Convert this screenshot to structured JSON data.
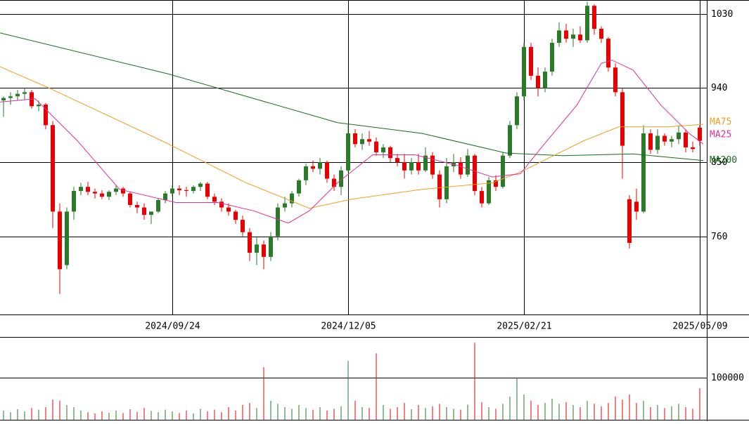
{
  "chart_data": {
    "type": "candlestick",
    "up_color": "#2a7a2a",
    "down_color": "#e80000",
    "xlim": [
      -0.5,
      100
    ],
    "xticks": [
      {
        "value": 24,
        "label": "2024/09/24"
      },
      {
        "value": 49,
        "label": "2024/12/05"
      },
      {
        "value": 74,
        "label": "2025/02/21"
      },
      {
        "value": 99,
        "label": "2025/05/09"
      }
    ],
    "ylim": [
      665,
      1047
    ],
    "yticks": [
      1030,
      940,
      850,
      760
    ],
    "ohlc": [
      [
        925,
        930,
        905,
        928
      ],
      [
        928,
        935,
        920,
        930
      ],
      [
        930,
        938,
        925,
        933
      ],
      [
        933,
        940,
        926,
        935
      ],
      [
        935,
        938,
        915,
        918
      ],
      [
        918,
        925,
        912,
        920
      ],
      [
        920,
        922,
        890,
        895
      ],
      [
        895,
        900,
        770,
        790
      ],
      [
        790,
        800,
        690,
        720
      ],
      [
        725,
        795,
        720,
        790
      ],
      [
        790,
        820,
        780,
        815
      ],
      [
        815,
        825,
        810,
        820
      ],
      [
        820,
        826,
        810,
        814
      ],
      [
        814,
        818,
        806,
        812
      ],
      [
        812,
        816,
        805,
        808
      ],
      [
        808,
        816,
        804,
        814
      ],
      [
        814,
        822,
        810,
        818
      ],
      [
        818,
        820,
        808,
        812
      ],
      [
        812,
        814,
        795,
        798
      ],
      [
        798,
        802,
        788,
        795
      ],
      [
        795,
        800,
        780,
        786
      ],
      [
        786,
        790,
        775,
        790
      ],
      [
        790,
        806,
        788,
        804
      ],
      [
        804,
        815,
        800,
        812
      ],
      [
        812,
        822,
        808,
        818
      ],
      [
        818,
        822,
        810,
        816
      ],
      [
        816,
        820,
        808,
        815
      ],
      [
        815,
        822,
        812,
        820
      ],
      [
        820,
        826,
        815,
        824
      ],
      [
        824,
        826,
        805,
        808
      ],
      [
        808,
        812,
        798,
        802
      ],
      [
        802,
        806,
        790,
        795
      ],
      [
        795,
        800,
        785,
        790
      ],
      [
        790,
        792,
        775,
        780
      ],
      [
        780,
        785,
        760,
        765
      ],
      [
        765,
        770,
        730,
        740
      ],
      [
        740,
        760,
        725,
        750
      ],
      [
        750,
        755,
        720,
        735
      ],
      [
        735,
        765,
        730,
        760
      ],
      [
        760,
        800,
        755,
        795
      ],
      [
        795,
        808,
        790,
        800
      ],
      [
        800,
        815,
        795,
        812
      ],
      [
        812,
        830,
        808,
        828
      ],
      [
        828,
        848,
        822,
        845
      ],
      [
        845,
        852,
        838,
        842
      ],
      [
        842,
        855,
        835,
        850
      ],
      [
        850,
        852,
        825,
        830
      ],
      [
        830,
        835,
        815,
        820
      ],
      [
        820,
        845,
        810,
        840
      ],
      [
        840,
        895,
        838,
        885
      ],
      [
        885,
        890,
        868,
        872
      ],
      [
        872,
        885,
        865,
        878
      ],
      [
        878,
        888,
        870,
        875
      ],
      [
        875,
        880,
        858,
        862
      ],
      [
        862,
        872,
        855,
        868
      ],
      [
        868,
        870,
        850,
        855
      ],
      [
        855,
        860,
        845,
        850
      ],
      [
        850,
        860,
        830,
        840
      ],
      [
        840,
        855,
        835,
        850
      ],
      [
        850,
        860,
        835,
        840
      ],
      [
        840,
        868,
        838,
        858
      ],
      [
        858,
        862,
        830,
        835
      ],
      [
        835,
        840,
        795,
        805
      ],
      [
        805,
        855,
        800,
        845
      ],
      [
        845,
        860,
        838,
        850
      ],
      [
        850,
        856,
        830,
        835
      ],
      [
        835,
        866,
        832,
        858
      ],
      [
        858,
        860,
        810,
        815
      ],
      [
        815,
        820,
        795,
        800
      ],
      [
        800,
        832,
        798,
        828
      ],
      [
        828,
        834,
        815,
        820
      ],
      [
        820,
        862,
        818,
        858
      ],
      [
        858,
        900,
        855,
        895
      ],
      [
        895,
        935,
        890,
        930
      ],
      [
        930,
        995,
        925,
        990
      ],
      [
        990,
        995,
        950,
        955
      ],
      [
        955,
        965,
        930,
        940
      ],
      [
        940,
        965,
        935,
        960
      ],
      [
        960,
        1000,
        955,
        995
      ],
      [
        995,
        1020,
        990,
        1010
      ],
      [
        1010,
        1018,
        995,
        1000
      ],
      [
        1000,
        1012,
        990,
        1005
      ],
      [
        1005,
        1015,
        995,
        998
      ],
      [
        998,
        1045,
        995,
        1040
      ],
      [
        1040,
        1042,
        1005,
        1012
      ],
      [
        1012,
        1015,
        995,
        1000
      ],
      [
        1000,
        1002,
        960,
        965
      ],
      [
        965,
        970,
        930,
        935
      ],
      [
        935,
        940,
        830,
        870
      ],
      [
        805,
        810,
        745,
        752
      ],
      [
        802,
        818,
        780,
        790
      ],
      [
        790,
        895,
        788,
        885
      ],
      [
        885,
        890,
        860,
        865
      ],
      [
        865,
        890,
        860,
        882
      ],
      [
        882,
        885,
        870,
        875
      ],
      [
        875,
        882,
        868,
        878
      ],
      [
        878,
        895,
        872,
        886
      ],
      [
        886,
        890,
        862,
        868
      ],
      [
        868,
        875,
        862,
        866
      ],
      [
        892,
        895,
        870,
        876
      ]
    ],
    "volume": [
      22000,
      18000,
      25000,
      20000,
      28000,
      24000,
      30000,
      48000,
      45000,
      35000,
      30000,
      22000,
      18000,
      15000,
      20000,
      17000,
      22000,
      16000,
      25000,
      19000,
      28000,
      21000,
      18000,
      24000,
      20000,
      16000,
      22000,
      15000,
      26000,
      20000,
      24000,
      18000,
      30000,
      22000,
      35000,
      40000,
      28000,
      125000,
      45000,
      38000,
      30000,
      26000,
      35000,
      28000,
      24000,
      30000,
      22000,
      26000,
      32000,
      140000,
      45000,
      30000,
      28000,
      158000,
      35000,
      26000,
      30000,
      40000,
      25000,
      35000,
      28000,
      32000,
      38000,
      30000,
      26000,
      24000,
      36000,
      183000,
      42000,
      30000,
      26000,
      38000,
      55000,
      100000,
      60000,
      45000,
      35000,
      40000,
      50000,
      38000,
      42000,
      35000,
      30000,
      45000,
      38000,
      32000,
      40000,
      55000,
      48000,
      60000,
      40000,
      45000,
      30000,
      35000,
      28000,
      32000,
      38000,
      30000,
      26000,
      75000
    ],
    "volume_ylim": [
      0,
      197000
    ],
    "volume_yticks": [
      100000
    ],
    "series": [
      {
        "name": "MA200",
        "color": "#1a6e1a",
        "x": [
          -0.5,
          23.5,
          47.5,
          59.5,
          71.5,
          79.5,
          89.5,
          99.5
        ],
        "values": [
          1007,
          957,
          898,
          885,
          861,
          858,
          860,
          852
        ]
      },
      {
        "name": "MA75",
        "color": "#f0a020",
        "x": [
          -0.5,
          6.5,
          22.5,
          34.5,
          43.5,
          49.5,
          59.5,
          69.5,
          73.5,
          77.5,
          82.5,
          87.5,
          94.5,
          99.5
        ],
        "values": [
          966,
          940,
          876,
          825,
          794,
          805,
          817,
          825,
          838,
          855,
          876,
          893,
          893,
          896
        ]
      },
      {
        "name": "MA25",
        "color": "#e0309a",
        "x": [
          -0.5,
          4.5,
          10.5,
          16.5,
          24.5,
          30.5,
          35.5,
          40.5,
          43.5,
          47.5,
          52.5,
          58.5,
          64.5,
          69.5,
          73.5,
          76.5,
          81.5,
          85,
          86.5,
          89.5,
          93.5,
          97.5,
          99.5
        ],
        "values": [
          923,
          927,
          876,
          817,
          801,
          801,
          791,
          776,
          791,
          825,
          859,
          859,
          846,
          832,
          836,
          868,
          919,
          970,
          974,
          962,
          919,
          885,
          872
        ]
      }
    ]
  }
}
